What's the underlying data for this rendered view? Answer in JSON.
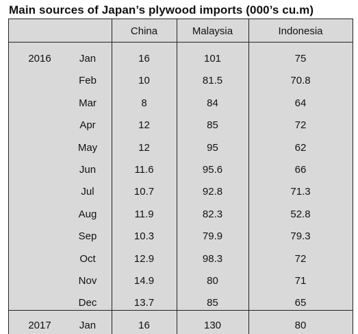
{
  "title": "Main sources of Japan’s plywood imports (000’s cu.m)",
  "columns": [
    "China",
    "Malaysia",
    "Indonesia"
  ],
  "rows": [
    {
      "year": "2016",
      "month": "Jan",
      "china": "16",
      "malaysia": "101",
      "indonesia": "75"
    },
    {
      "year": "",
      "month": "Feb",
      "china": "10",
      "malaysia": "81.5",
      "indonesia": "70.8"
    },
    {
      "year": "",
      "month": "Mar",
      "china": "8",
      "malaysia": "84",
      "indonesia": "64"
    },
    {
      "year": "",
      "month": "Apr",
      "china": "12",
      "malaysia": "85",
      "indonesia": "72"
    },
    {
      "year": "",
      "month": "May",
      "china": "12",
      "malaysia": "95",
      "indonesia": "62"
    },
    {
      "year": "",
      "month": "Jun",
      "china": "11.6",
      "malaysia": "95.6",
      "indonesia": "66"
    },
    {
      "year": "",
      "month": "Jul",
      "china": "10.7",
      "malaysia": "92.8",
      "indonesia": "71.3"
    },
    {
      "year": "",
      "month": "Aug",
      "china": "11.9",
      "malaysia": "82.3",
      "indonesia": "52.8"
    },
    {
      "year": "",
      "month": "Sep",
      "china": "10.3",
      "malaysia": "79.9",
      "indonesia": "79.3"
    },
    {
      "year": "",
      "month": "Oct",
      "china": "12.9",
      "malaysia": "98.3",
      "indonesia": "72"
    },
    {
      "year": "",
      "month": "Nov",
      "china": "14.9",
      "malaysia": "80",
      "indonesia": "71"
    },
    {
      "year": "",
      "month": "Dec",
      "china": "13.7",
      "malaysia": "85",
      "indonesia": "65"
    },
    {
      "year": "2017",
      "month": "Jan",
      "china": "16",
      "malaysia": "130",
      "indonesia": "80"
    }
  ]
}
